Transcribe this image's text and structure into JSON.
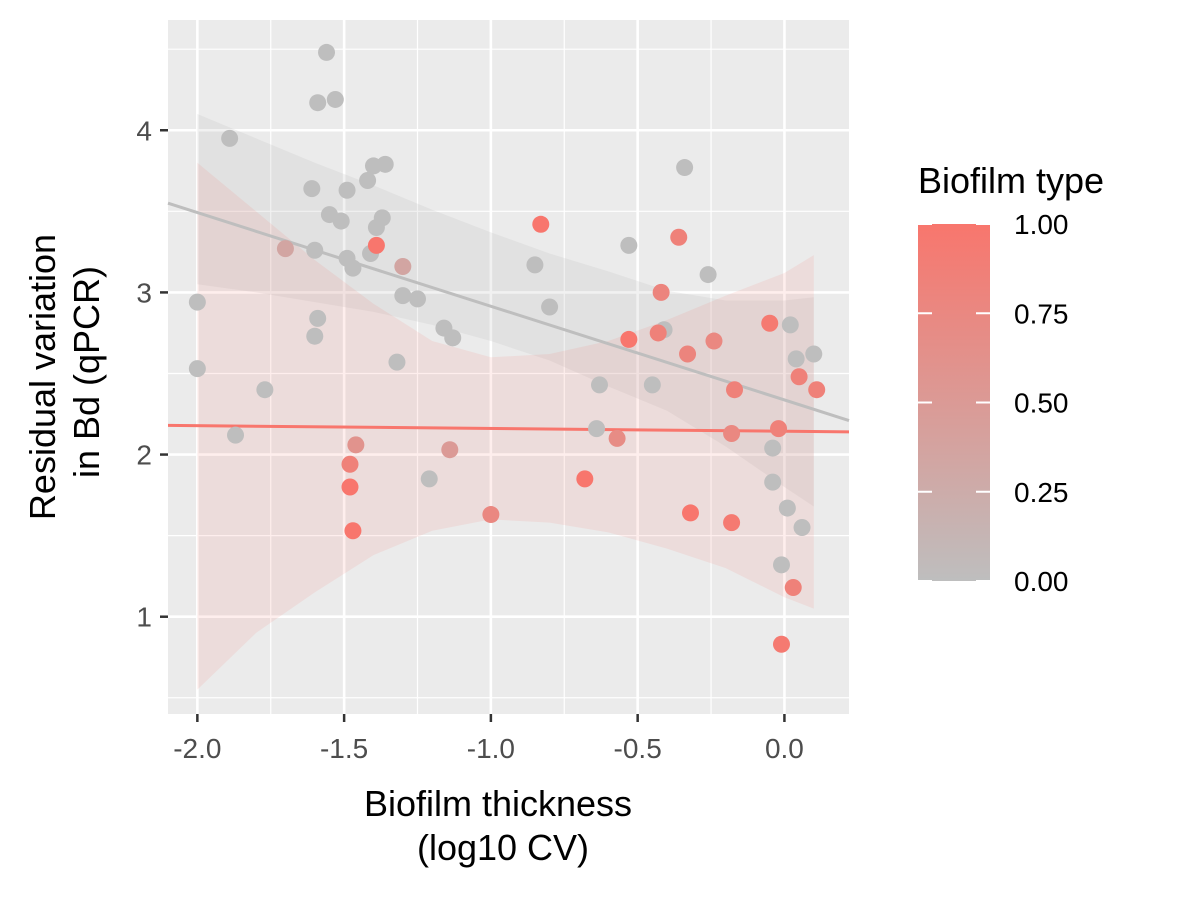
{
  "chart_data": {
    "type": "scatter",
    "xlabel": [
      "Biofilm thickness",
      "(log10 CV)"
    ],
    "ylabel": [
      "Residual variation",
      "in Bd (qPCR)"
    ],
    "xlim": [
      -2.1,
      0.22
    ],
    "ylim": [
      0.4,
      4.68
    ],
    "x_ticks": [
      -2.0,
      -1.5,
      -1.0,
      -0.5,
      0.0
    ],
    "x_tick_labels": [
      "-2.0",
      "-1.5",
      "-1.0",
      "-0.5",
      "0.0"
    ],
    "y_ticks": [
      1,
      2,
      3,
      4
    ],
    "y_tick_labels": [
      "1",
      "2",
      "3",
      "4"
    ],
    "grid": true,
    "legend": {
      "title": "Biofilm type",
      "placement": "right",
      "type": "colorbar",
      "range": [
        0,
        1
      ],
      "breaks": [
        1.0,
        0.75,
        0.5,
        0.25,
        0.0
      ],
      "labels": [
        "1.00",
        "0.75",
        "0.50",
        "0.25",
        "0.00"
      ],
      "low_color": "#bebebe",
      "high_color": "#f8766d"
    },
    "colors": {
      "panel_background": "#ebebeb",
      "grid": "#ffffff",
      "low": "#bebebe",
      "high": "#f8766d"
    },
    "points": [
      {
        "x": -1.56,
        "y": 4.48,
        "type": 0
      },
      {
        "x": -1.59,
        "y": 4.17,
        "type": 0
      },
      {
        "x": -1.53,
        "y": 4.19,
        "type": 0
      },
      {
        "x": -1.89,
        "y": 3.95,
        "type": 0
      },
      {
        "x": -1.61,
        "y": 3.64,
        "type": 0
      },
      {
        "x": -1.49,
        "y": 3.63,
        "type": 0
      },
      {
        "x": -1.4,
        "y": 3.78,
        "type": 0
      },
      {
        "x": -1.36,
        "y": 3.79,
        "type": 0
      },
      {
        "x": -1.42,
        "y": 3.69,
        "type": 0
      },
      {
        "x": -1.55,
        "y": 3.48,
        "type": 0
      },
      {
        "x": -1.51,
        "y": 3.44,
        "type": 0
      },
      {
        "x": -1.37,
        "y": 3.46,
        "type": 0
      },
      {
        "x": -1.39,
        "y": 3.4,
        "type": 0
      },
      {
        "x": -1.6,
        "y": 3.26,
        "type": 0
      },
      {
        "x": -1.49,
        "y": 3.21,
        "type": 0
      },
      {
        "x": -1.47,
        "y": 3.15,
        "type": 0
      },
      {
        "x": -1.41,
        "y": 3.24,
        "type": 0
      },
      {
        "x": -1.3,
        "y": 2.98,
        "type": 0
      },
      {
        "x": -1.25,
        "y": 2.96,
        "type": 0
      },
      {
        "x": -1.59,
        "y": 2.84,
        "type": 0
      },
      {
        "x": -1.6,
        "y": 2.73,
        "type": 0
      },
      {
        "x": -2.0,
        "y": 2.94,
        "type": 0
      },
      {
        "x": -2.0,
        "y": 2.53,
        "type": 0
      },
      {
        "x": -1.77,
        "y": 2.4,
        "type": 0
      },
      {
        "x": -1.87,
        "y": 2.12,
        "type": 0
      },
      {
        "x": -1.32,
        "y": 2.57,
        "type": 0
      },
      {
        "x": -1.16,
        "y": 2.78,
        "type": 0
      },
      {
        "x": -1.13,
        "y": 2.72,
        "type": 0
      },
      {
        "x": -1.21,
        "y": 1.85,
        "type": 0
      },
      {
        "x": -0.85,
        "y": 3.17,
        "type": 0
      },
      {
        "x": -0.8,
        "y": 2.91,
        "type": 0
      },
      {
        "x": -0.53,
        "y": 3.29,
        "type": 0
      },
      {
        "x": -0.34,
        "y": 3.77,
        "type": 0
      },
      {
        "x": -0.26,
        "y": 3.11,
        "type": 0
      },
      {
        "x": -0.41,
        "y": 2.77,
        "type": 0
      },
      {
        "x": -0.63,
        "y": 2.43,
        "type": 0
      },
      {
        "x": -0.45,
        "y": 2.43,
        "type": 0
      },
      {
        "x": -0.64,
        "y": 2.16,
        "type": 0
      },
      {
        "x": 0.02,
        "y": 2.8,
        "type": 0
      },
      {
        "x": 0.1,
        "y": 2.62,
        "type": 0
      },
      {
        "x": 0.04,
        "y": 2.59,
        "type": 0
      },
      {
        "x": -0.04,
        "y": 2.04,
        "type": 0
      },
      {
        "x": -0.04,
        "y": 1.83,
        "type": 0
      },
      {
        "x": 0.01,
        "y": 1.67,
        "type": 0
      },
      {
        "x": 0.06,
        "y": 1.55,
        "type": 0
      },
      {
        "x": -0.01,
        "y": 1.32,
        "type": 0
      },
      {
        "x": -1.7,
        "y": 3.27,
        "type": 0.35
      },
      {
        "x": -1.3,
        "y": 3.16,
        "type": 0.35
      },
      {
        "x": -1.46,
        "y": 2.06,
        "type": 0.6
      },
      {
        "x": -1.14,
        "y": 2.03,
        "type": 0.5
      },
      {
        "x": -1.0,
        "y": 1.63,
        "type": 0.75
      },
      {
        "x": -1.39,
        "y": 3.29,
        "type": 1.0
      },
      {
        "x": -1.48,
        "y": 1.94,
        "type": 0.85
      },
      {
        "x": -1.48,
        "y": 1.8,
        "type": 1.0
      },
      {
        "x": -1.47,
        "y": 1.53,
        "type": 1.0
      },
      {
        "x": -0.83,
        "y": 3.42,
        "type": 1.0
      },
      {
        "x": -0.53,
        "y": 2.71,
        "type": 1.0
      },
      {
        "x": -0.36,
        "y": 3.34,
        "type": 0.85
      },
      {
        "x": -0.42,
        "y": 3.0,
        "type": 0.8
      },
      {
        "x": -0.43,
        "y": 2.75,
        "type": 0.85
      },
      {
        "x": -0.33,
        "y": 2.62,
        "type": 0.8
      },
      {
        "x": -0.24,
        "y": 2.7,
        "type": 0.75
      },
      {
        "x": -0.57,
        "y": 2.1,
        "type": 0.7
      },
      {
        "x": -0.68,
        "y": 1.85,
        "type": 1.0
      },
      {
        "x": -0.32,
        "y": 1.64,
        "type": 1.0
      },
      {
        "x": -0.18,
        "y": 1.58,
        "type": 0.95
      },
      {
        "x": -0.17,
        "y": 2.4,
        "type": 0.85
      },
      {
        "x": -0.18,
        "y": 2.13,
        "type": 0.75
      },
      {
        "x": -0.05,
        "y": 2.81,
        "type": 0.95
      },
      {
        "x": -0.02,
        "y": 2.16,
        "type": 0.85
      },
      {
        "x": 0.05,
        "y": 2.48,
        "type": 0.85
      },
      {
        "x": 0.11,
        "y": 2.4,
        "type": 0.85
      },
      {
        "x": 0.03,
        "y": 1.18,
        "type": 0.85
      },
      {
        "x": -0.01,
        "y": 0.83,
        "type": 0.95
      }
    ],
    "fit_lines": [
      {
        "type": 0,
        "color": "#bebebe",
        "line": {
          "x": [
            -2.1,
            0.22
          ],
          "y": [
            3.55,
            2.21
          ]
        },
        "band": {
          "x": [
            -2.0,
            -1.8,
            -1.6,
            -1.4,
            -1.2,
            -1.0,
            -0.8,
            -0.6,
            -0.4,
            -0.2,
            0.0,
            0.1
          ],
          "upper": [
            4.1,
            3.95,
            3.8,
            3.66,
            3.51,
            3.37,
            3.24,
            3.13,
            3.01,
            2.95,
            2.95,
            2.97
          ],
          "lower": [
            3.05,
            3.0,
            2.94,
            2.88,
            2.8,
            2.7,
            2.58,
            2.42,
            2.27,
            2.05,
            1.8,
            1.68
          ]
        }
      },
      {
        "type": 1,
        "color": "#f8766d",
        "line": {
          "x": [
            -2.1,
            0.22
          ],
          "y": [
            2.18,
            2.14
          ]
        },
        "band": {
          "x": [
            -2.0,
            -1.8,
            -1.6,
            -1.4,
            -1.2,
            -1.0,
            -0.8,
            -0.6,
            -0.4,
            -0.2,
            0.0,
            0.1
          ],
          "upper": [
            3.8,
            3.5,
            3.2,
            2.93,
            2.7,
            2.6,
            2.62,
            2.7,
            2.83,
            2.98,
            3.12,
            3.23
          ],
          "lower": [
            0.55,
            0.9,
            1.15,
            1.38,
            1.53,
            1.6,
            1.58,
            1.52,
            1.42,
            1.3,
            1.12,
            1.05
          ]
        }
      }
    ]
  }
}
